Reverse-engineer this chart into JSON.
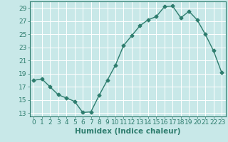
{
  "xlabel": "Humidex (Indice chaleur)",
  "ylabel": "",
  "x": [
    0,
    1,
    2,
    3,
    4,
    5,
    6,
    7,
    8,
    9,
    10,
    11,
    12,
    13,
    14,
    15,
    16,
    17,
    18,
    19,
    20,
    21,
    22,
    23
  ],
  "y": [
    18.0,
    18.2,
    17.0,
    15.8,
    15.3,
    14.8,
    13.1,
    13.2,
    15.7,
    18.0,
    20.3,
    23.3,
    24.8,
    26.3,
    27.2,
    27.7,
    29.2,
    29.3,
    27.5,
    28.5,
    27.2,
    25.0,
    22.5,
    19.2
  ],
  "line_color": "#2e7d6e",
  "marker": "D",
  "marker_size": 2.5,
  "bg_color": "#c8e8e8",
  "grid_color": "#ffffff",
  "ylim": [
    12.5,
    30.0
  ],
  "yticks": [
    13,
    15,
    17,
    19,
    21,
    23,
    25,
    27,
    29
  ],
  "xlim": [
    -0.5,
    23.5
  ],
  "xticks": [
    0,
    1,
    2,
    3,
    4,
    5,
    6,
    7,
    8,
    9,
    10,
    11,
    12,
    13,
    14,
    15,
    16,
    17,
    18,
    19,
    20,
    21,
    22,
    23
  ],
  "tick_color": "#2e7d6e",
  "label_color": "#2e7d6e",
  "xlabel_fontsize": 7.5,
  "tick_fontsize": 6.5,
  "linewidth": 1.0
}
